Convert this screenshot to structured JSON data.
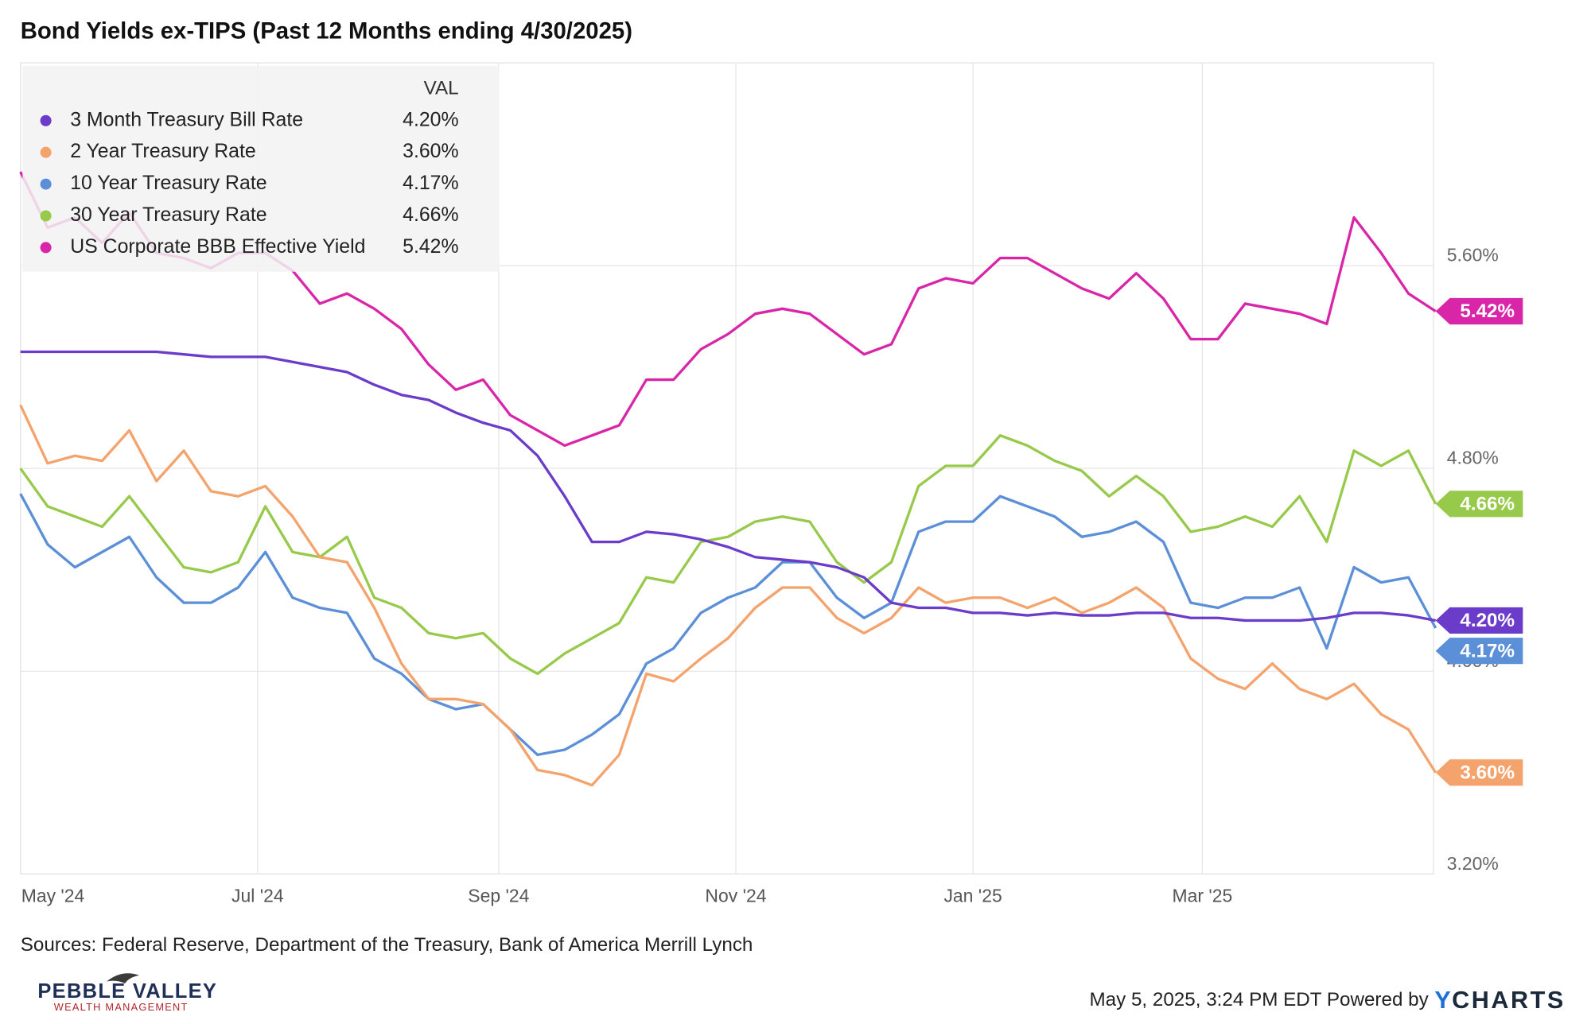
{
  "chart_data": {
    "type": "line",
    "title": "Bond Yields ex-TIPS (Past 12 Months ending 4/30/2025)",
    "legend_header": "VAL",
    "x": [
      0,
      7,
      14,
      21,
      28,
      35,
      42,
      49,
      56,
      63,
      70,
      77,
      84,
      91,
      98,
      105,
      112,
      119,
      126,
      133,
      140,
      147,
      154,
      161,
      168,
      175,
      182,
      189,
      196,
      203,
      210,
      217,
      224,
      231,
      238,
      245,
      252,
      259,
      266,
      273,
      280,
      287,
      294,
      301,
      308,
      315,
      322,
      329,
      336,
      343,
      350,
      357,
      364
    ],
    "xlim": [
      0,
      364
    ],
    "xticks": [
      {
        "value": 0,
        "label": "May '24"
      },
      {
        "value": 61,
        "label": "Jul '24"
      },
      {
        "value": 123,
        "label": "Sep '24"
      },
      {
        "value": 184,
        "label": "Nov '24"
      },
      {
        "value": 245,
        "label": "Jan '25"
      },
      {
        "value": 304,
        "label": "Mar '25"
      }
    ],
    "ylim": [
      3.2,
      6.4
    ],
    "yticks": [
      {
        "value": 3.2,
        "label": "3.20%"
      },
      {
        "value": 4.0,
        "label": "4.00%"
      },
      {
        "value": 4.8,
        "label": "4.80%"
      },
      {
        "value": 5.6,
        "label": "5.60%"
      }
    ],
    "grid": true,
    "legend": "top-left",
    "series": [
      {
        "name": "3 Month Treasury Bill Rate",
        "color": "#6a3cc9",
        "values": [
          5.26,
          5.26,
          5.26,
          5.26,
          5.26,
          5.26,
          5.25,
          5.24,
          5.24,
          5.24,
          5.22,
          5.2,
          5.18,
          5.13,
          5.09,
          5.07,
          5.02,
          4.98,
          4.95,
          4.85,
          4.69,
          4.51,
          4.51,
          4.55,
          4.54,
          4.52,
          4.49,
          4.45,
          4.44,
          4.43,
          4.41,
          4.37,
          4.27,
          4.25,
          4.25,
          4.23,
          4.23,
          4.22,
          4.23,
          4.22,
          4.22,
          4.23,
          4.23,
          4.21,
          4.21,
          4.2,
          4.2,
          4.2,
          4.21,
          4.23,
          4.23,
          4.22,
          4.2
        ],
        "value_labels": [
          null,
          null,
          null,
          null,
          null,
          null,
          null,
          null,
          null,
          null,
          null,
          null,
          null,
          null,
          null,
          null,
          null,
          null,
          null,
          null,
          null,
          null,
          null,
          null,
          null,
          null,
          null,
          null,
          null,
          null,
          null,
          null,
          null,
          null,
          null,
          null,
          null,
          null,
          null,
          null,
          null,
          null,
          null,
          null,
          null,
          null,
          null,
          null,
          null,
          null,
          null,
          null,
          "4.20%"
        ]
      },
      {
        "name": "2 Year Treasury Rate",
        "color": "#f5a36c",
        "values": [
          5.05,
          4.82,
          4.85,
          4.83,
          4.95,
          4.75,
          4.87,
          4.71,
          4.69,
          4.73,
          4.61,
          4.45,
          4.43,
          4.25,
          4.03,
          3.89,
          3.89,
          3.87,
          3.77,
          3.61,
          3.59,
          3.55,
          3.67,
          3.99,
          3.96,
          4.05,
          4.13,
          4.25,
          4.33,
          4.33,
          4.21,
          4.15,
          4.21,
          4.33,
          4.27,
          4.29,
          4.29,
          4.25,
          4.29,
          4.23,
          4.27,
          4.33,
          4.25,
          4.05,
          3.97,
          3.93,
          4.03,
          3.93,
          3.89,
          3.95,
          3.83,
          3.77,
          3.6
        ],
        "value_labels": [
          null,
          null,
          null,
          null,
          null,
          null,
          null,
          null,
          null,
          null,
          null,
          null,
          null,
          null,
          null,
          null,
          null,
          null,
          null,
          null,
          null,
          null,
          null,
          null,
          null,
          null,
          null,
          null,
          null,
          null,
          null,
          null,
          null,
          null,
          null,
          null,
          null,
          null,
          null,
          null,
          null,
          null,
          null,
          null,
          null,
          null,
          null,
          null,
          null,
          null,
          null,
          null,
          "3.60%"
        ]
      },
      {
        "name": "10 Year Treasury Rate",
        "color": "#5b8fd8",
        "values": [
          4.7,
          4.5,
          4.41,
          4.47,
          4.53,
          4.37,
          4.27,
          4.27,
          4.33,
          4.47,
          4.29,
          4.25,
          4.23,
          4.05,
          3.99,
          3.89,
          3.85,
          3.87,
          3.77,
          3.67,
          3.69,
          3.75,
          3.83,
          4.03,
          4.09,
          4.23,
          4.29,
          4.33,
          4.43,
          4.43,
          4.29,
          4.21,
          4.27,
          4.55,
          4.59,
          4.59,
          4.69,
          4.65,
          4.61,
          4.53,
          4.55,
          4.59,
          4.51,
          4.27,
          4.25,
          4.29,
          4.29,
          4.33,
          4.09,
          4.41,
          4.35,
          4.37,
          4.17
        ],
        "value_labels": [
          null,
          null,
          null,
          null,
          null,
          null,
          null,
          null,
          null,
          null,
          null,
          null,
          null,
          null,
          null,
          null,
          null,
          null,
          null,
          null,
          null,
          null,
          null,
          null,
          null,
          null,
          null,
          null,
          null,
          null,
          null,
          null,
          null,
          null,
          null,
          null,
          null,
          null,
          null,
          null,
          null,
          null,
          null,
          null,
          null,
          null,
          null,
          null,
          null,
          null,
          null,
          null,
          "4.17%"
        ]
      },
      {
        "name": "30 Year Treasury Rate",
        "color": "#97c94b",
        "values": [
          4.8,
          4.65,
          4.61,
          4.57,
          4.69,
          4.55,
          4.41,
          4.39,
          4.43,
          4.65,
          4.47,
          4.45,
          4.53,
          4.29,
          4.25,
          4.15,
          4.13,
          4.15,
          4.05,
          3.99,
          4.07,
          4.13,
          4.19,
          4.37,
          4.35,
          4.51,
          4.53,
          4.59,
          4.61,
          4.59,
          4.43,
          4.35,
          4.43,
          4.73,
          4.81,
          4.81,
          4.93,
          4.89,
          4.83,
          4.79,
          4.69,
          4.77,
          4.69,
          4.55,
          4.57,
          4.61,
          4.57,
          4.69,
          4.51,
          4.87,
          4.81,
          4.87,
          4.66
        ],
        "value_labels": [
          null,
          null,
          null,
          null,
          null,
          null,
          null,
          null,
          null,
          null,
          null,
          null,
          null,
          null,
          null,
          null,
          null,
          null,
          null,
          null,
          null,
          null,
          null,
          null,
          null,
          null,
          null,
          null,
          null,
          null,
          null,
          null,
          null,
          null,
          null,
          null,
          null,
          null,
          null,
          null,
          null,
          null,
          null,
          null,
          null,
          null,
          null,
          null,
          null,
          null,
          null,
          null,
          "4.66%"
        ]
      },
      {
        "name": "US Corporate BBB Effective Yield",
        "color": "#d926a9",
        "values": [
          5.97,
          5.75,
          5.79,
          5.69,
          5.81,
          5.65,
          5.63,
          5.59,
          5.65,
          5.65,
          5.58,
          5.45,
          5.49,
          5.43,
          5.35,
          5.21,
          5.11,
          5.15,
          5.01,
          4.95,
          4.89,
          4.93,
          4.97,
          5.15,
          5.15,
          5.27,
          5.33,
          5.41,
          5.43,
          5.41,
          5.33,
          5.25,
          5.29,
          5.51,
          5.55,
          5.53,
          5.63,
          5.63,
          5.57,
          5.51,
          5.47,
          5.57,
          5.47,
          5.31,
          5.31,
          5.45,
          5.43,
          5.41,
          5.37,
          5.79,
          5.65,
          5.49,
          5.42
        ],
        "value_labels": [
          null,
          null,
          null,
          null,
          null,
          null,
          null,
          null,
          null,
          null,
          null,
          null,
          null,
          null,
          null,
          null,
          null,
          null,
          null,
          null,
          null,
          null,
          null,
          null,
          null,
          null,
          null,
          null,
          null,
          null,
          null,
          null,
          null,
          null,
          null,
          null,
          null,
          null,
          null,
          null,
          null,
          null,
          null,
          null,
          null,
          null,
          null,
          null,
          null,
          null,
          null,
          null,
          "5.42%"
        ]
      }
    ],
    "source": "Sources: Federal Reserve, Department of the Treasury, Bank of America Merrill Lynch",
    "timestamp": "May 5, 2025, 3:24 PM EDT Powered by",
    "brand_mark": "Y",
    "brand": "CHARTS",
    "logo_name": "PEBBLE VALLEY",
    "logo_tagline": "WEALTH MANAGEMENT"
  }
}
